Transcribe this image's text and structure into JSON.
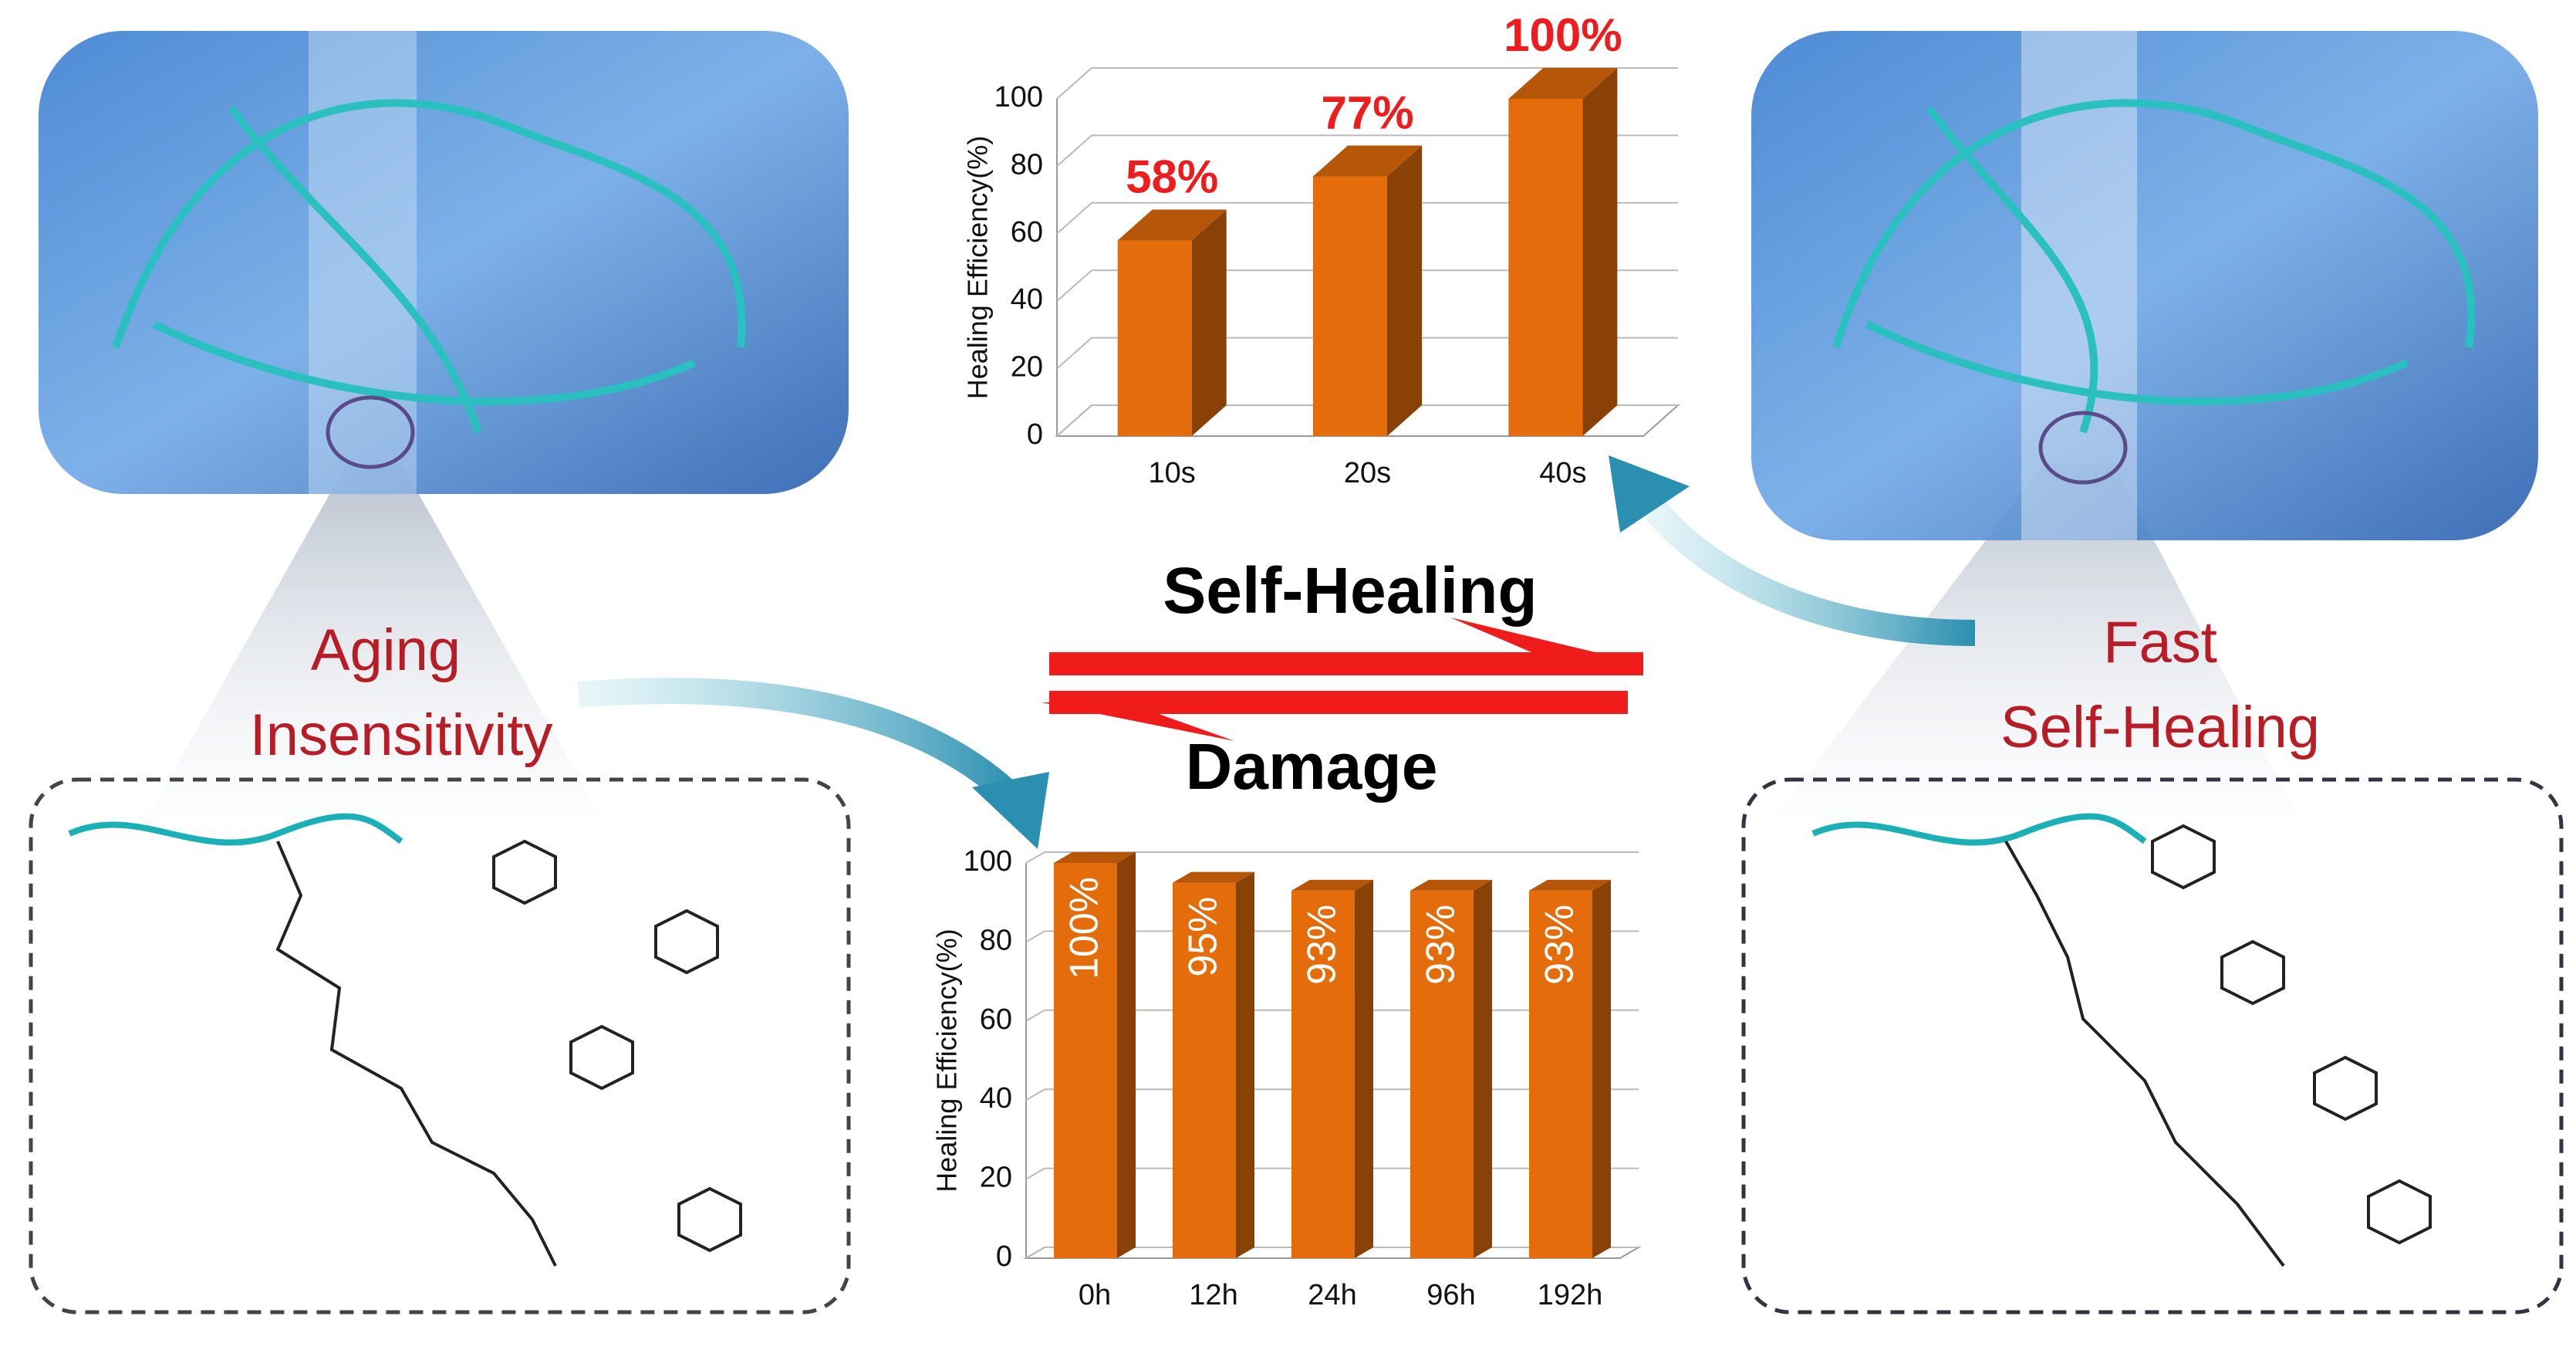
{
  "chart_data": [
    {
      "type": "bar3d",
      "y_label": "Healing Efficiency(%)",
      "categories": [
        "10s",
        "20s",
        "40s"
      ],
      "values": [
        58,
        77,
        100
      ],
      "value_labels": [
        "58%",
        "77%",
        "100%"
      ],
      "color": "#e46c0a",
      "ylim": [
        0,
        100
      ],
      "yticks": [
        0,
        20,
        40,
        60,
        80,
        100
      ],
      "grid": true
    },
    {
      "type": "bar3d",
      "y_label": "Healing Efficiency(%)",
      "categories": [
        "0h",
        "12h",
        "24h",
        "96h",
        "192h"
      ],
      "values": [
        100,
        95,
        93,
        93,
        93
      ],
      "value_labels": [
        "100%",
        "95%",
        "93%",
        "93%",
        "93%"
      ],
      "color": "#e46c0a",
      "ylim": [
        0,
        100
      ],
      "yticks": [
        0,
        20,
        40,
        60,
        80,
        100
      ],
      "grid": true
    }
  ],
  "annotations": {
    "forward": "Self-Healing",
    "backward": "Damage",
    "left_line1": "Aging",
    "left_line2": "Insensitivity",
    "right_line1": "Fast",
    "right_line2": "Self-Healing"
  }
}
